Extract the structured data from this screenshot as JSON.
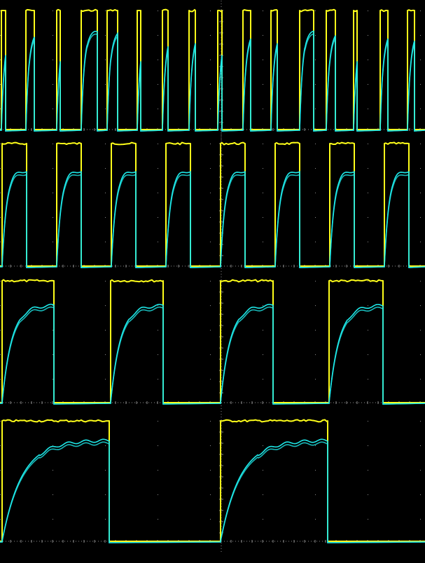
{
  "colors": {
    "background": "#000000",
    "grid": "#8a8a8a",
    "ch1": "#ffff1a",
    "ch2": "#1ee8e8"
  },
  "chart_data": [
    {
      "type": "line",
      "description_of_axes": "unlabeled",
      "grid": true,
      "series": [
        {
          "color": "#ffff1a",
          "shape": "square",
          "high": 1,
          "low": 0,
          "pulses": [
            [
              2,
              8
            ],
            [
              37,
              49
            ],
            [
              81,
              86
            ],
            [
              116,
              139
            ],
            [
              153,
              168
            ],
            [
              196,
              201
            ],
            [
              232,
              240
            ],
            [
              270,
              279
            ],
            [
              311,
              317
            ],
            [
              347,
              358
            ],
            [
              387,
              396
            ],
            [
              428,
              448
            ],
            [
              466,
              479
            ],
            [
              505,
              510
            ],
            [
              543,
              554
            ],
            [
              582,
              592
            ]
          ]
        },
        {
          "color": "#1ee8e8",
          "shape": "rc_response",
          "high": 0.82,
          "low": 0
        }
      ]
    },
    {
      "type": "line",
      "grid": true,
      "series": [
        {
          "color": "#ffff1a",
          "shape": "square",
          "high": 1,
          "low": 0,
          "pulses": [
            [
              3,
              38
            ],
            [
              81,
              116
            ],
            [
              159,
              194
            ],
            [
              237,
              272
            ],
            [
              315,
              350
            ],
            [
              393,
              428
            ],
            [
              471,
              506
            ],
            [
              549,
              584
            ]
          ]
        },
        {
          "color": "#1ee8e8",
          "shape": "rc_response",
          "high": 0.78,
          "low": 0
        }
      ]
    },
    {
      "type": "line",
      "grid": true,
      "series": [
        {
          "color": "#ffff1a",
          "shape": "square",
          "high": 1,
          "low": 0,
          "pulses": [
            [
              3,
              77
            ],
            [
              158,
              233
            ],
            [
              315,
              390
            ],
            [
              470,
              547
            ]
          ]
        },
        {
          "color": "#1ee8e8",
          "shape": "rc_response",
          "high": 0.8,
          "low": 0
        }
      ]
    },
    {
      "type": "line",
      "grid": true,
      "series": [
        {
          "color": "#ffff1a",
          "shape": "square",
          "high": 1,
          "low": 0,
          "pulses": [
            [
              3,
              156
            ],
            [
              315,
              468
            ]
          ]
        },
        {
          "color": "#1ee8e8",
          "shape": "rc_response",
          "high": 0.84,
          "low": 0
        }
      ]
    }
  ]
}
